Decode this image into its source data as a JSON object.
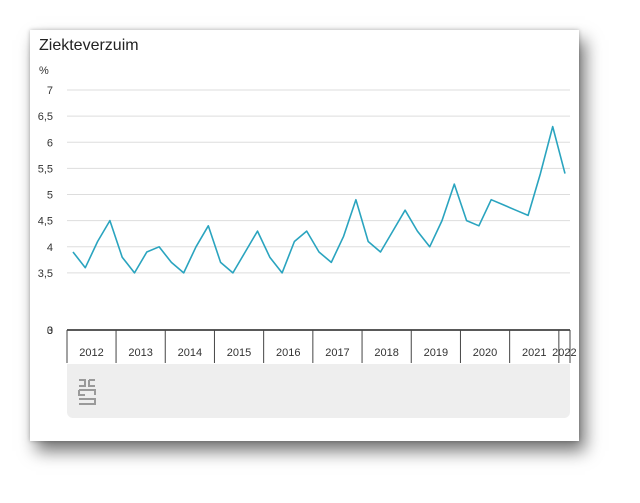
{
  "chart_data": {
    "type": "line",
    "title": "Ziekteverzuim",
    "ylabel": "%",
    "ylim": [
      0,
      7
    ],
    "y_axis_break": [
      0,
      3
    ],
    "y_ticks": [
      "0",
      "3",
      "3,5",
      "4",
      "4,5",
      "5",
      "5,5",
      "6",
      "6,5",
      "7"
    ],
    "x_axis_labels": [
      "2012",
      "2013",
      "2014",
      "2015",
      "2016",
      "2017",
      "2018",
      "2019",
      "2020",
      "2021",
      "2022"
    ],
    "x_unit": "quarter",
    "grid": true,
    "line_color": "#2aa4bf",
    "series": [
      {
        "values": [
          3.9,
          3.6,
          4.1,
          4.5,
          3.8,
          3.5,
          3.9,
          4.0,
          3.7,
          3.5,
          4.0,
          4.4,
          3.7,
          3.5,
          3.9,
          4.3,
          3.8,
          3.5,
          4.1,
          4.3,
          3.9,
          3.7,
          4.2,
          4.9,
          4.1,
          3.9,
          4.3,
          4.7,
          4.3,
          4.0,
          4.5,
          5.2,
          4.5,
          4.4,
          4.9,
          4.8,
          4.7,
          4.6,
          5.4,
          6.3,
          5.4
        ]
      }
    ]
  },
  "logo": {
    "name": "cbs-logo-icon"
  }
}
